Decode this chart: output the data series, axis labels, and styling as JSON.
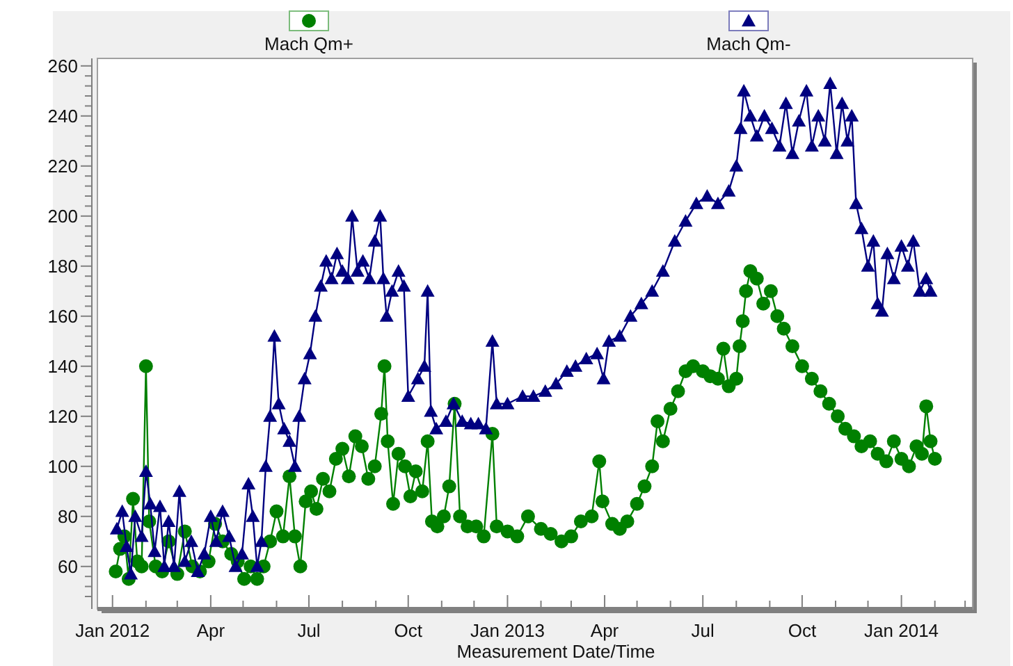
{
  "chart_data": {
    "type": "line",
    "xlabel": "Measurement Date/Time",
    "legend": "top",
    "grid": false,
    "xlim": [
      "2011-12-18",
      "2014-03-08"
    ],
    "xticks": [
      {
        "value": "2012-01-01",
        "label": "Jan 2012"
      },
      {
        "value": "2012-02-01",
        "label": null
      },
      {
        "value": "2012-03-01",
        "label": null
      },
      {
        "value": "2012-04-01",
        "label": "Apr"
      },
      {
        "value": "2012-05-01",
        "label": null
      },
      {
        "value": "2012-06-01",
        "label": null
      },
      {
        "value": "2012-07-01",
        "label": "Jul"
      },
      {
        "value": "2012-08-01",
        "label": null
      },
      {
        "value": "2012-09-01",
        "label": null
      },
      {
        "value": "2012-10-01",
        "label": "Oct"
      },
      {
        "value": "2012-11-01",
        "label": null
      },
      {
        "value": "2012-12-01",
        "label": null
      },
      {
        "value": "2013-01-01",
        "label": "Jan 2013"
      },
      {
        "value": "2013-02-01",
        "label": null
      },
      {
        "value": "2013-03-01",
        "label": null
      },
      {
        "value": "2013-04-01",
        "label": "Apr"
      },
      {
        "value": "2013-05-01",
        "label": null
      },
      {
        "value": "2013-06-01",
        "label": null
      },
      {
        "value": "2013-07-01",
        "label": "Jul"
      },
      {
        "value": "2013-08-01",
        "label": null
      },
      {
        "value": "2013-09-01",
        "label": null
      },
      {
        "value": "2013-10-01",
        "label": "Oct"
      },
      {
        "value": "2013-11-01",
        "label": null
      },
      {
        "value": "2013-12-01",
        "label": null
      },
      {
        "value": "2014-01-01",
        "label": "Jan 2014"
      },
      {
        "value": "2014-02-01",
        "label": null
      },
      {
        "value": "2014-03-01",
        "label": null
      }
    ],
    "ylim": [
      43,
      263
    ],
    "yticks": [
      {
        "value": 48,
        "label": null
      },
      {
        "value": 52,
        "label": null
      },
      {
        "value": 56,
        "label": null
      },
      60,
      {
        "value": 64,
        "label": null
      },
      {
        "value": 68,
        "label": null
      },
      {
        "value": 72,
        "label": null
      },
      {
        "value": 76,
        "label": null
      },
      80,
      {
        "value": 84,
        "label": null
      },
      {
        "value": 88,
        "label": null
      },
      {
        "value": 92,
        "label": null
      },
      {
        "value": 96,
        "label": null
      },
      100,
      {
        "value": 104,
        "label": null
      },
      {
        "value": 108,
        "label": null
      },
      {
        "value": 112,
        "label": null
      },
      {
        "value": 116,
        "label": null
      },
      120,
      {
        "value": 124,
        "label": null
      },
      {
        "value": 128,
        "label": null
      },
      {
        "value": 132,
        "label": null
      },
      {
        "value": 136,
        "label": null
      },
      140,
      {
        "value": 144,
        "label": null
      },
      {
        "value": 148,
        "label": null
      },
      {
        "value": 152,
        "label": null
      },
      {
        "value": 156,
        "label": null
      },
      160,
      {
        "value": 164,
        "label": null
      },
      {
        "value": 168,
        "label": null
      },
      {
        "value": 172,
        "label": null
      },
      {
        "value": 176,
        "label": null
      },
      180,
      {
        "value": 184,
        "label": null
      },
      {
        "value": 188,
        "label": null
      },
      {
        "value": 192,
        "label": null
      },
      {
        "value": 196,
        "label": null
      },
      200,
      {
        "value": 204,
        "label": null
      },
      {
        "value": 208,
        "label": null
      },
      {
        "value": 212,
        "label": null
      },
      {
        "value": 216,
        "label": null
      },
      220,
      {
        "value": 224,
        "label": null
      },
      {
        "value": 228,
        "label": null
      },
      {
        "value": 232,
        "label": null
      },
      {
        "value": 236,
        "label": null
      },
      240,
      {
        "value": 244,
        "label": null
      },
      {
        "value": 248,
        "label": null
      },
      {
        "value": 252,
        "label": null
      },
      {
        "value": 256,
        "label": null
      },
      260
    ],
    "series": [
      {
        "name": "Mach Qm+",
        "color": "#008000",
        "marker": "circle",
        "x": [
          "2012-01-04",
          "2012-01-08",
          "2012-01-12",
          "2012-01-16",
          "2012-01-20",
          "2012-01-24",
          "2012-01-28",
          "2012-02-01",
          "2012-02-04",
          "2012-02-10",
          "2012-02-16",
          "2012-02-22",
          "2012-03-01",
          "2012-03-08",
          "2012-03-15",
          "2012-03-22",
          "2012-03-30",
          "2012-04-05",
          "2012-04-12",
          "2012-04-20",
          "2012-04-26",
          "2012-05-02",
          "2012-05-08",
          "2012-05-14",
          "2012-05-20",
          "2012-05-26",
          "2012-06-01",
          "2012-06-07",
          "2012-06-13",
          "2012-06-18",
          "2012-06-23",
          "2012-06-28",
          "2012-07-03",
          "2012-07-08",
          "2012-07-14",
          "2012-07-20",
          "2012-07-26",
          "2012-08-01",
          "2012-08-07",
          "2012-08-13",
          "2012-08-19",
          "2012-08-25",
          "2012-08-31",
          "2012-09-06",
          "2012-09-09",
          "2012-09-12",
          "2012-09-17",
          "2012-09-22",
          "2012-09-28",
          "2012-10-03",
          "2012-10-08",
          "2012-10-14",
          "2012-10-19",
          "2012-10-23",
          "2012-10-28",
          "2012-11-03",
          "2012-11-08",
          "2012-11-13",
          "2012-11-18",
          "2012-11-25",
          "2012-12-03",
          "2012-12-10",
          "2012-12-18",
          "2012-12-22",
          "2013-01-01",
          "2013-01-10",
          "2013-01-20",
          "2013-02-01",
          "2013-02-10",
          "2013-02-20",
          "2013-03-01",
          "2013-03-10",
          "2013-03-20",
          "2013-03-27",
          "2013-03-30",
          "2013-04-08",
          "2013-04-15",
          "2013-04-22",
          "2013-05-01",
          "2013-05-08",
          "2013-05-15",
          "2013-05-20",
          "2013-05-25",
          "2013-06-01",
          "2013-06-08",
          "2013-06-15",
          "2013-06-22",
          "2013-07-01",
          "2013-07-08",
          "2013-07-15",
          "2013-07-20",
          "2013-07-25",
          "2013-08-01",
          "2013-08-04",
          "2013-08-07",
          "2013-08-10",
          "2013-08-14",
          "2013-08-20",
          "2013-08-26",
          "2013-09-02",
          "2013-09-08",
          "2013-09-14",
          "2013-09-22",
          "2013-10-01",
          "2013-10-10",
          "2013-10-18",
          "2013-10-26",
          "2013-11-03",
          "2013-11-10",
          "2013-11-18",
          "2013-11-25",
          "2013-12-03",
          "2013-12-10",
          "2013-12-18",
          "2013-12-25",
          "2014-01-01",
          "2014-01-08",
          "2014-01-15",
          "2014-01-20",
          "2014-01-24",
          "2014-01-28",
          "2014-02-01"
        ],
        "values": [
          58,
          67,
          72,
          55,
          87,
          62,
          60,
          140,
          78,
          60,
          58,
          70,
          57,
          74,
          60,
          58,
          62,
          77,
          70,
          65,
          62,
          55,
          60,
          55,
          60,
          70,
          82,
          72,
          96,
          72,
          60,
          86,
          90,
          83,
          95,
          90,
          103,
          107,
          96,
          112,
          108,
          95,
          100,
          121,
          140,
          110,
          85,
          105,
          100,
          88,
          98,
          90,
          110,
          78,
          76,
          80,
          92,
          125,
          80,
          76,
          76,
          72,
          113,
          76,
          74,
          72,
          80,
          75,
          73,
          70,
          72,
          78,
          80,
          102,
          86,
          77,
          75,
          78,
          85,
          92,
          100,
          118,
          110,
          123,
          130,
          138,
          140,
          138,
          136,
          135,
          147,
          132,
          135,
          148,
          158,
          170,
          178,
          175,
          165,
          170,
          160,
          155,
          148,
          140,
          135,
          130,
          125,
          120,
          115,
          112,
          108,
          110,
          105,
          102,
          110,
          103,
          100,
          108,
          105,
          124,
          110,
          103
        ]
      },
      {
        "name": "Mach Qm-",
        "color": "#000080",
        "marker": "triangle",
        "x": [
          "2012-01-05",
          "2012-01-10",
          "2012-01-14",
          "2012-01-18",
          "2012-01-22",
          "2012-01-28",
          "2012-02-01",
          "2012-02-05",
          "2012-02-09",
          "2012-02-14",
          "2012-02-18",
          "2012-02-22",
          "2012-02-27",
          "2012-03-03",
          "2012-03-08",
          "2012-03-14",
          "2012-03-20",
          "2012-03-26",
          "2012-04-01",
          "2012-04-06",
          "2012-04-12",
          "2012-04-18",
          "2012-04-24",
          "2012-04-30",
          "2012-05-06",
          "2012-05-10",
          "2012-05-14",
          "2012-05-18",
          "2012-05-22",
          "2012-05-26",
          "2012-05-30",
          "2012-06-03",
          "2012-06-08",
          "2012-06-13",
          "2012-06-18",
          "2012-06-22",
          "2012-06-27",
          "2012-07-02",
          "2012-07-07",
          "2012-07-12",
          "2012-07-17",
          "2012-07-22",
          "2012-07-27",
          "2012-08-01",
          "2012-08-06",
          "2012-08-10",
          "2012-08-15",
          "2012-08-20",
          "2012-08-26",
          "2012-08-31",
          "2012-09-05",
          "2012-09-08",
          "2012-09-11",
          "2012-09-16",
          "2012-09-22",
          "2012-09-27",
          "2012-10-01",
          "2012-10-10",
          "2012-10-16",
          "2012-10-19",
          "2012-10-22",
          "2012-10-27",
          "2012-11-05",
          "2012-11-12",
          "2012-11-20",
          "2012-11-28",
          "2012-12-05",
          "2012-12-12",
          "2012-12-18",
          "2012-12-22",
          "2013-01-01",
          "2013-01-15",
          "2013-01-25",
          "2013-02-05",
          "2013-02-15",
          "2013-02-25",
          "2013-03-05",
          "2013-03-15",
          "2013-03-25",
          "2013-03-31",
          "2013-04-05",
          "2013-04-15",
          "2013-04-25",
          "2013-05-05",
          "2013-05-15",
          "2013-05-25",
          "2013-06-05",
          "2013-06-15",
          "2013-06-25",
          "2013-07-05",
          "2013-07-15",
          "2013-07-25",
          "2013-08-01",
          "2013-08-05",
          "2013-08-08",
          "2013-08-14",
          "2013-08-20",
          "2013-08-27",
          "2013-09-03",
          "2013-09-10",
          "2013-09-16",
          "2013-09-22",
          "2013-09-28",
          "2013-10-05",
          "2013-10-10",
          "2013-10-16",
          "2013-10-22",
          "2013-10-27",
          "2013-11-02",
          "2013-11-07",
          "2013-11-12",
          "2013-11-16",
          "2013-11-20",
          "2013-11-25",
          "2013-12-01",
          "2013-12-06",
          "2013-12-10",
          "2013-12-14",
          "2013-12-19",
          "2013-12-25",
          "2014-01-01",
          "2014-01-07",
          "2014-01-12",
          "2014-01-18",
          "2014-01-24",
          "2014-01-28"
        ],
        "values": [
          75,
          82,
          68,
          57,
          80,
          72,
          98,
          85,
          66,
          84,
          60,
          78,
          60,
          90,
          62,
          70,
          58,
          65,
          80,
          70,
          82,
          72,
          60,
          65,
          93,
          80,
          60,
          70,
          100,
          120,
          152,
          125,
          115,
          110,
          100,
          120,
          135,
          145,
          160,
          172,
          182,
          175,
          185,
          178,
          175,
          200,
          178,
          182,
          175,
          190,
          200,
          175,
          160,
          170,
          178,
          172,
          128,
          135,
          140,
          170,
          122,
          115,
          118,
          125,
          118,
          117,
          117,
          115,
          150,
          125,
          125,
          128,
          128,
          130,
          133,
          138,
          140,
          143,
          145,
          135,
          150,
          152,
          160,
          165,
          170,
          178,
          190,
          198,
          205,
          208,
          205,
          210,
          220,
          235,
          250,
          240,
          232,
          240,
          235,
          228,
          245,
          225,
          238,
          250,
          228,
          240,
          230,
          253,
          225,
          245,
          230,
          240,
          205,
          195,
          180,
          190,
          165,
          162,
          185,
          175,
          188,
          180,
          190,
          170,
          175,
          170
        ]
      }
    ]
  }
}
